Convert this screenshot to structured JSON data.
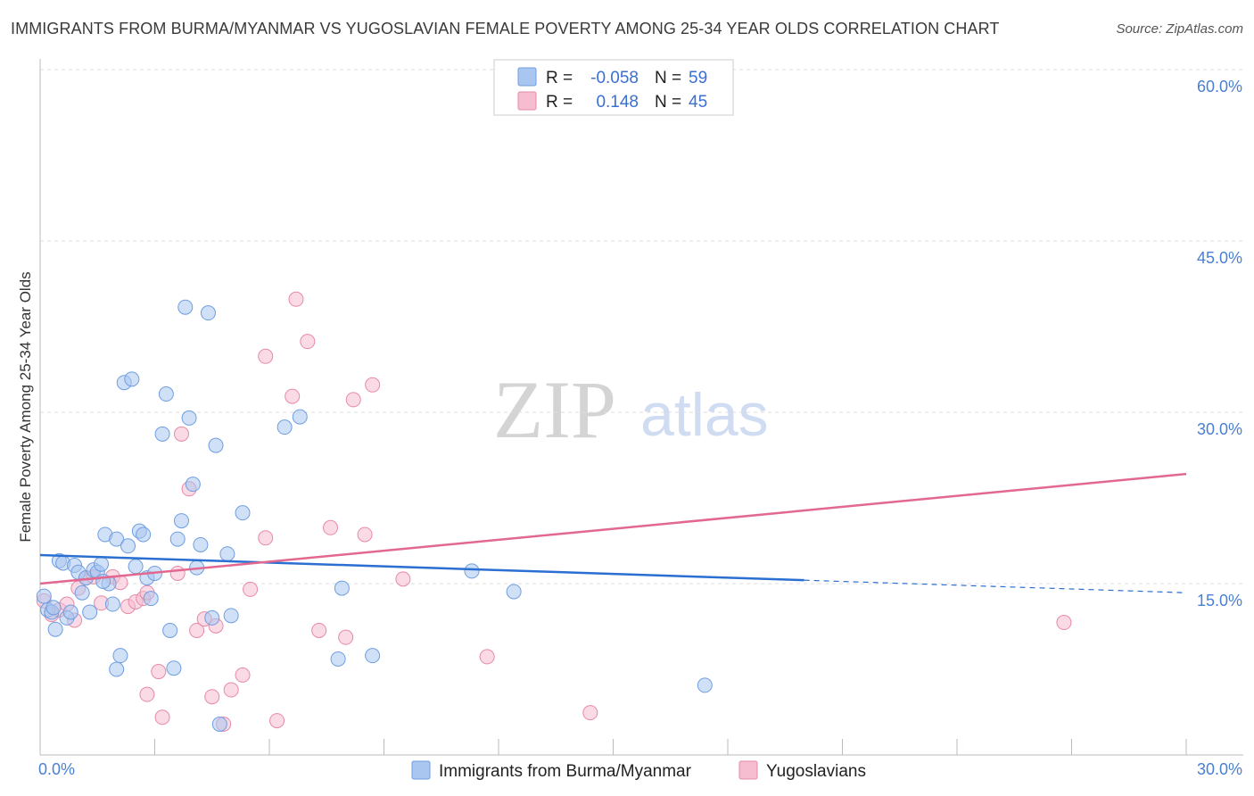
{
  "header": {
    "title": "IMMIGRANTS FROM BURMA/MYANMAR VS YUGOSLAVIAN FEMALE POVERTY AMONG 25-34 YEAR OLDS CORRELATION CHART",
    "source": "Source: ZipAtlas.com"
  },
  "watermark": {
    "zip": "ZIP",
    "atlas": "atlas"
  },
  "colors": {
    "blue_fill": "#a9c6f0",
    "blue_stroke": "#6f9ee0",
    "blue_line": "#2a6fd1",
    "pink_fill": "#f6bcd0",
    "pink_stroke": "#e68aaa",
    "pink_line": "#e2688f",
    "tick_color": "#4a7fd4",
    "grid": "#dddddd"
  },
  "legend": {
    "rows": [
      {
        "r_label": "R =",
        "r_value": "-0.058",
        "n_label": "N =",
        "n_value": "59"
      },
      {
        "r_label": "R =",
        "r_value": "0.148",
        "n_label": "N =",
        "n_value": "45"
      }
    ]
  },
  "bottom_legend": {
    "series1": "Immigrants from Burma/Myanmar",
    "series2": "Yugoslavians"
  },
  "chart_data": {
    "type": "scatter",
    "title": "IMMIGRANTS FROM BURMA/MYANMAR VS YUGOSLAVIAN FEMALE POVERTY AMONG 25-34 YEAR OLDS CORRELATION CHART",
    "xlabel": "",
    "ylabel": "Female Poverty Among 25-34 Year Olds",
    "xlim": [
      0,
      30
    ],
    "ylim": [
      0,
      60
    ],
    "x_tick_labels": [
      "0.0%",
      "30.0%"
    ],
    "y_tick_values": [
      15,
      30,
      45,
      60
    ],
    "y_tick_labels": [
      "15.0%",
      "30.0%",
      "45.0%",
      "60.0%"
    ],
    "series": [
      {
        "name": "Immigrants from Burma/Myanmar",
        "r": -0.058,
        "n": 59,
        "trend": {
          "x0": 0.0,
          "y0": 17.5,
          "x1": 20.0,
          "y1": 15.3,
          "dash_to_x": 30.0,
          "dash_to_y": 14.2
        },
        "points": [
          [
            0.1,
            13.9
          ],
          [
            0.2,
            12.7
          ],
          [
            0.3,
            12.5
          ],
          [
            0.4,
            11.0
          ],
          [
            0.5,
            17.0
          ],
          [
            0.6,
            16.8
          ],
          [
            0.7,
            12.0
          ],
          [
            0.8,
            12.5
          ],
          [
            0.9,
            16.6
          ],
          [
            1.0,
            16.0
          ],
          [
            1.1,
            14.2
          ],
          [
            1.2,
            15.5
          ],
          [
            1.3,
            12.5
          ],
          [
            1.4,
            16.2
          ],
          [
            1.5,
            16.0
          ],
          [
            1.6,
            16.7
          ],
          [
            1.7,
            19.3
          ],
          [
            1.8,
            15.0
          ],
          [
            1.9,
            13.2
          ],
          [
            2.0,
            18.9
          ],
          [
            2.0,
            7.5
          ],
          [
            2.1,
            8.7
          ],
          [
            2.2,
            32.6
          ],
          [
            2.3,
            18.3
          ],
          [
            2.4,
            32.9
          ],
          [
            2.5,
            16.5
          ],
          [
            2.6,
            19.6
          ],
          [
            2.7,
            19.3
          ],
          [
            2.8,
            15.5
          ],
          [
            2.9,
            13.7
          ],
          [
            3.0,
            15.9
          ],
          [
            3.2,
            28.1
          ],
          [
            3.3,
            31.6
          ],
          [
            3.4,
            10.9
          ],
          [
            3.5,
            7.6
          ],
          [
            3.6,
            18.9
          ],
          [
            3.7,
            20.5
          ],
          [
            3.8,
            39.2
          ],
          [
            3.9,
            29.5
          ],
          [
            4.0,
            23.7
          ],
          [
            4.1,
            16.4
          ],
          [
            4.2,
            18.4
          ],
          [
            4.4,
            38.7
          ],
          [
            4.5,
            12.0
          ],
          [
            4.6,
            27.1
          ],
          [
            4.7,
            2.7
          ],
          [
            4.9,
            17.6
          ],
          [
            5.0,
            12.2
          ],
          [
            5.3,
            21.2
          ],
          [
            6.4,
            28.7
          ],
          [
            6.8,
            29.6
          ],
          [
            7.8,
            8.4
          ],
          [
            7.9,
            14.6
          ],
          [
            8.7,
            8.7
          ],
          [
            11.3,
            16.1
          ],
          [
            12.4,
            14.3
          ],
          [
            17.4,
            6.1
          ],
          [
            0.35,
            12.9
          ],
          [
            1.65,
            15.2
          ]
        ]
      },
      {
        "name": "Yugoslavians",
        "r": 0.148,
        "n": 45,
        "trend": {
          "x0": 0.0,
          "y0": 15.0,
          "x1": 30.0,
          "y1": 24.6
        },
        "points": [
          [
            0.1,
            13.5
          ],
          [
            0.3,
            12.3
          ],
          [
            0.5,
            12.7
          ],
          [
            0.7,
            13.2
          ],
          [
            0.9,
            11.8
          ],
          [
            1.0,
            14.6
          ],
          [
            1.2,
            15.5
          ],
          [
            1.4,
            15.6
          ],
          [
            1.6,
            13.3
          ],
          [
            1.9,
            15.6
          ],
          [
            2.1,
            15.1
          ],
          [
            2.3,
            13.0
          ],
          [
            2.5,
            13.4
          ],
          [
            2.7,
            13.7
          ],
          [
            2.8,
            14.2
          ],
          [
            2.8,
            5.3
          ],
          [
            3.1,
            7.3
          ],
          [
            3.2,
            3.3
          ],
          [
            3.6,
            15.9
          ],
          [
            3.7,
            28.1
          ],
          [
            3.9,
            23.3
          ],
          [
            4.1,
            10.9
          ],
          [
            4.3,
            11.9
          ],
          [
            4.5,
            5.1
          ],
          [
            4.6,
            11.3
          ],
          [
            4.8,
            2.7
          ],
          [
            5.0,
            5.7
          ],
          [
            5.3,
            7.0
          ],
          [
            5.5,
            14.5
          ],
          [
            5.9,
            19.0
          ],
          [
            5.9,
            34.9
          ],
          [
            6.2,
            3.0
          ],
          [
            6.6,
            31.4
          ],
          [
            6.7,
            39.9
          ],
          [
            7.0,
            36.2
          ],
          [
            7.3,
            10.9
          ],
          [
            7.6,
            19.9
          ],
          [
            8.0,
            10.3
          ],
          [
            8.2,
            31.1
          ],
          [
            8.5,
            19.3
          ],
          [
            8.7,
            32.4
          ],
          [
            9.5,
            15.4
          ],
          [
            11.7,
            8.6
          ],
          [
            14.4,
            3.7
          ],
          [
            26.8,
            11.6
          ]
        ]
      }
    ]
  }
}
